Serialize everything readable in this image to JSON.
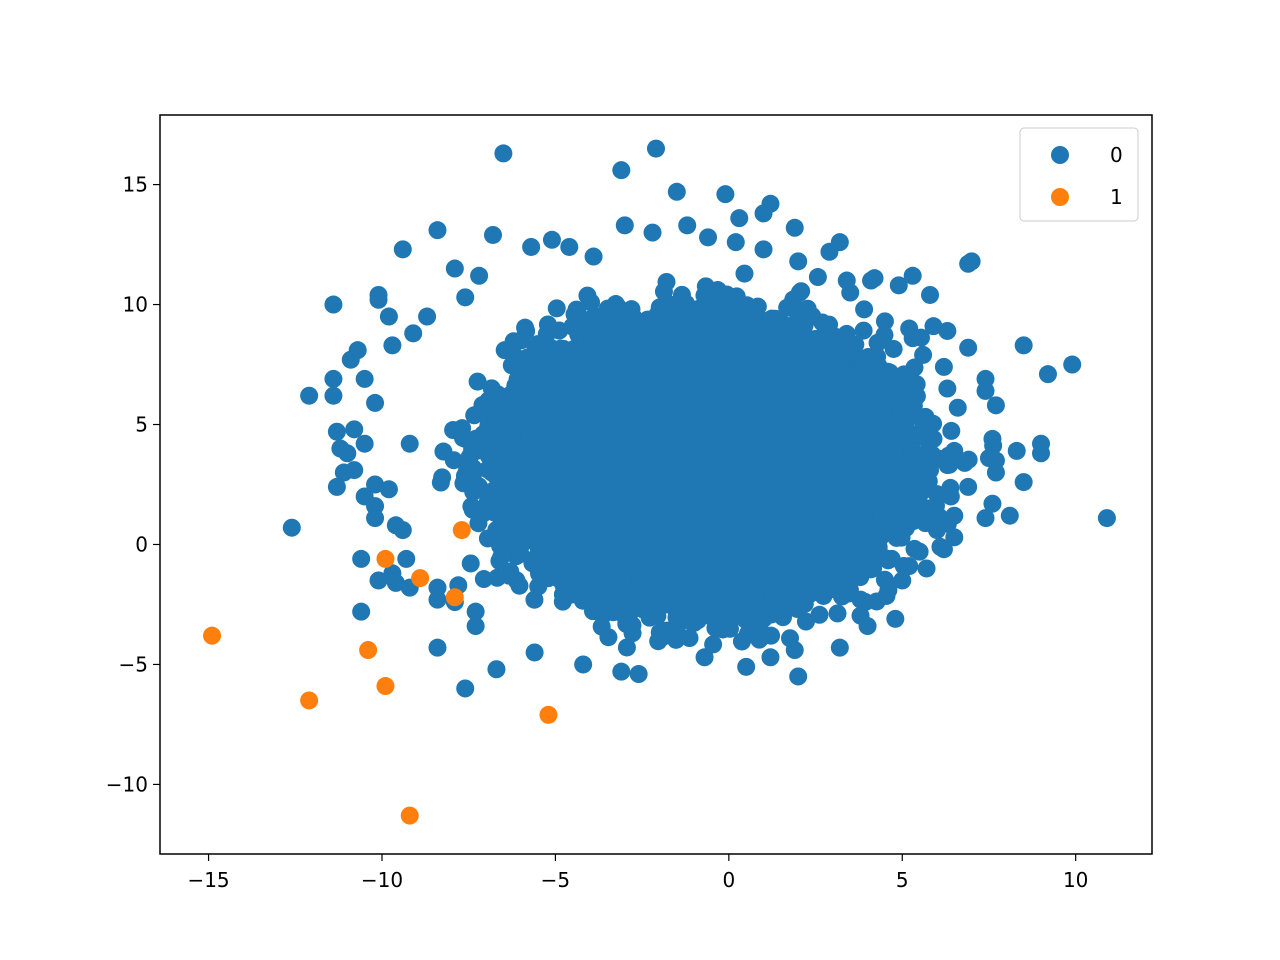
{
  "chart_data": {
    "type": "scatter",
    "title": "",
    "xlabel": "",
    "ylabel": "",
    "xlim": [
      -16.4,
      12.2
    ],
    "ylim": [
      -12.9,
      17.9
    ],
    "xticks": [
      -15,
      -10,
      -5,
      0,
      5,
      10
    ],
    "yticks": [
      -10,
      -5,
      0,
      5,
      10,
      15
    ],
    "xtick_labels": [
      "−15",
      "−10",
      "−5",
      "0",
      "5",
      "10"
    ],
    "ytick_labels": [
      "−10",
      "−5",
      "0",
      "5",
      "10",
      "15"
    ],
    "grid": false,
    "legend": {
      "placement": "top-right",
      "entries": [
        "0",
        "1"
      ]
    },
    "series": [
      {
        "name": "0",
        "color": "#1f77b4",
        "cloud": {
          "center": [
            -0.8,
            3.5
          ],
          "radius": [
            6.0,
            6.2
          ]
        },
        "points": [
          [
            -6.5,
            16.3
          ],
          [
            -2.1,
            16.5
          ],
          [
            -3.1,
            15.6
          ],
          [
            -1.5,
            14.7
          ],
          [
            -0.1,
            14.6
          ],
          [
            1.2,
            14.2
          ],
          [
            0.3,
            13.6
          ],
          [
            1.0,
            13.8
          ],
          [
            -8.4,
            13.1
          ],
          [
            -3.0,
            13.3
          ],
          [
            -2.2,
            13.0
          ],
          [
            -1.2,
            13.3
          ],
          [
            1.9,
            13.2
          ],
          [
            -9.4,
            12.3
          ],
          [
            -6.8,
            12.9
          ],
          [
            3.2,
            12.6
          ],
          [
            2.9,
            12.2
          ],
          [
            6.9,
            11.7
          ],
          [
            7.0,
            11.8
          ],
          [
            5.3,
            11.2
          ],
          [
            -10.1,
            10.4
          ],
          [
            -11.4,
            10.0
          ],
          [
            4.9,
            10.8
          ],
          [
            5.8,
            10.4
          ],
          [
            -10.1,
            10.2
          ],
          [
            -9.8,
            9.5
          ],
          [
            -9.1,
            8.8
          ],
          [
            -9.7,
            8.3
          ],
          [
            -10.7,
            8.1
          ],
          [
            -10.9,
            7.7
          ],
          [
            -11.4,
            6.9
          ],
          [
            -12.1,
            6.2
          ],
          [
            -11.4,
            6.2
          ],
          [
            -10.5,
            6.9
          ],
          [
            -10.2,
            5.9
          ],
          [
            -11.3,
            4.7
          ],
          [
            -10.8,
            4.8
          ],
          [
            -11.2,
            4.0
          ],
          [
            -10.5,
            4.2
          ],
          [
            -11.0,
            3.8
          ],
          [
            -11.1,
            3.0
          ],
          [
            -10.8,
            3.1
          ],
          [
            -11.3,
            2.4
          ],
          [
            -10.5,
            2.0
          ],
          [
            -10.2,
            2.5
          ],
          [
            -10.2,
            1.6
          ],
          [
            -10.2,
            1.1
          ],
          [
            -9.8,
            2.3
          ],
          [
            -12.6,
            0.7
          ],
          [
            -9.6,
            0.8
          ],
          [
            -9.4,
            0.6
          ],
          [
            -10.6,
            -0.6
          ],
          [
            -9.3,
            -0.6
          ],
          [
            -9.7,
            -1.2
          ],
          [
            -10.1,
            -1.5
          ],
          [
            -9.6,
            -1.6
          ],
          [
            -9.2,
            -1.8
          ],
          [
            -8.4,
            -1.8
          ],
          [
            -7.8,
            -1.7
          ],
          [
            -8.4,
            -2.3
          ],
          [
            -10.6,
            -2.8
          ],
          [
            -7.9,
            -2.4
          ],
          [
            -7.3,
            -2.8
          ],
          [
            -7.3,
            -3.4
          ],
          [
            -8.4,
            -4.3
          ],
          [
            -6.7,
            -5.2
          ],
          [
            -7.6,
            -6.0
          ],
          [
            -5.6,
            -4.5
          ],
          [
            -4.2,
            -5.0
          ],
          [
            -3.1,
            -5.3
          ],
          [
            -2.6,
            -5.4
          ],
          [
            -0.7,
            -4.7
          ],
          [
            0.5,
            -5.1
          ],
          [
            1.2,
            -4.7
          ],
          [
            1.9,
            -4.4
          ],
          [
            2.0,
            -5.5
          ],
          [
            3.2,
            -4.3
          ],
          [
            4.0,
            -3.4
          ],
          [
            4.8,
            -3.1
          ],
          [
            3.8,
            -2.3
          ],
          [
            4.6,
            -1.9
          ],
          [
            5.0,
            -1.5
          ],
          [
            5.2,
            -0.9
          ],
          [
            5.7,
            -1.0
          ],
          [
            5.5,
            -0.3
          ],
          [
            6.0,
            0.6
          ],
          [
            6.1,
            -0.1
          ],
          [
            6.5,
            0.3
          ],
          [
            6.5,
            1.2
          ],
          [
            6.4,
            2.0
          ],
          [
            6.9,
            2.4
          ],
          [
            7.4,
            1.1
          ],
          [
            7.6,
            1.7
          ],
          [
            8.1,
            1.2
          ],
          [
            8.5,
            2.6
          ],
          [
            7.5,
            3.6
          ],
          [
            7.7,
            3.5
          ],
          [
            7.7,
            3.0
          ],
          [
            8.3,
            3.9
          ],
          [
            9.0,
            3.8
          ],
          [
            9.0,
            4.2
          ],
          [
            7.6,
            4.4
          ],
          [
            7.7,
            5.8
          ],
          [
            6.6,
            5.7
          ],
          [
            6.3,
            6.5
          ],
          [
            7.4,
            6.9
          ],
          [
            7.4,
            6.4
          ],
          [
            6.9,
            8.2
          ],
          [
            8.5,
            8.3
          ],
          [
            9.2,
            7.1
          ],
          [
            9.9,
            7.5
          ],
          [
            10.9,
            1.1
          ],
          [
            6.2,
            7.4
          ],
          [
            5.6,
            7.9
          ],
          [
            6.3,
            8.9
          ],
          [
            5.9,
            9.1
          ],
          [
            5.2,
            9.0
          ],
          [
            5.3,
            8.6
          ],
          [
            4.5,
            9.3
          ],
          [
            3.9,
            9.8
          ],
          [
            4.1,
            11.0
          ],
          [
            4.2,
            11.1
          ],
          [
            3.5,
            10.5
          ],
          [
            3.4,
            11.0
          ],
          [
            6.0,
            2.1
          ],
          [
            5.8,
            3.1
          ],
          [
            6.8,
            3.4
          ],
          [
            5.4,
            4.6
          ],
          [
            5.9,
            4.4
          ],
          [
            6.5,
            3.9
          ],
          [
            -9.2,
            4.2
          ],
          [
            -8.7,
            9.5
          ],
          [
            -7.9,
            11.5
          ],
          [
            -7.6,
            10.3
          ],
          [
            -7.2,
            11.2
          ],
          [
            -5.7,
            12.4
          ],
          [
            -5.1,
            12.7
          ],
          [
            -4.6,
            12.4
          ],
          [
            -3.9,
            12.0
          ],
          [
            -0.6,
            12.8
          ],
          [
            0.2,
            12.6
          ],
          [
            1.0,
            12.3
          ],
          [
            2.0,
            11.8
          ]
        ]
      },
      {
        "name": "1",
        "color": "#ff7f0e",
        "points": [
          [
            -14.9,
            -3.8
          ],
          [
            -12.1,
            -6.5
          ],
          [
            -10.4,
            -4.4
          ],
          [
            -9.9,
            -5.9
          ],
          [
            -9.9,
            -0.6
          ],
          [
            -8.9,
            -1.4
          ],
          [
            -7.9,
            -2.2
          ],
          [
            -7.7,
            0.6
          ],
          [
            -5.2,
            -7.1
          ],
          [
            -9.2,
            -11.3
          ]
        ]
      }
    ]
  }
}
